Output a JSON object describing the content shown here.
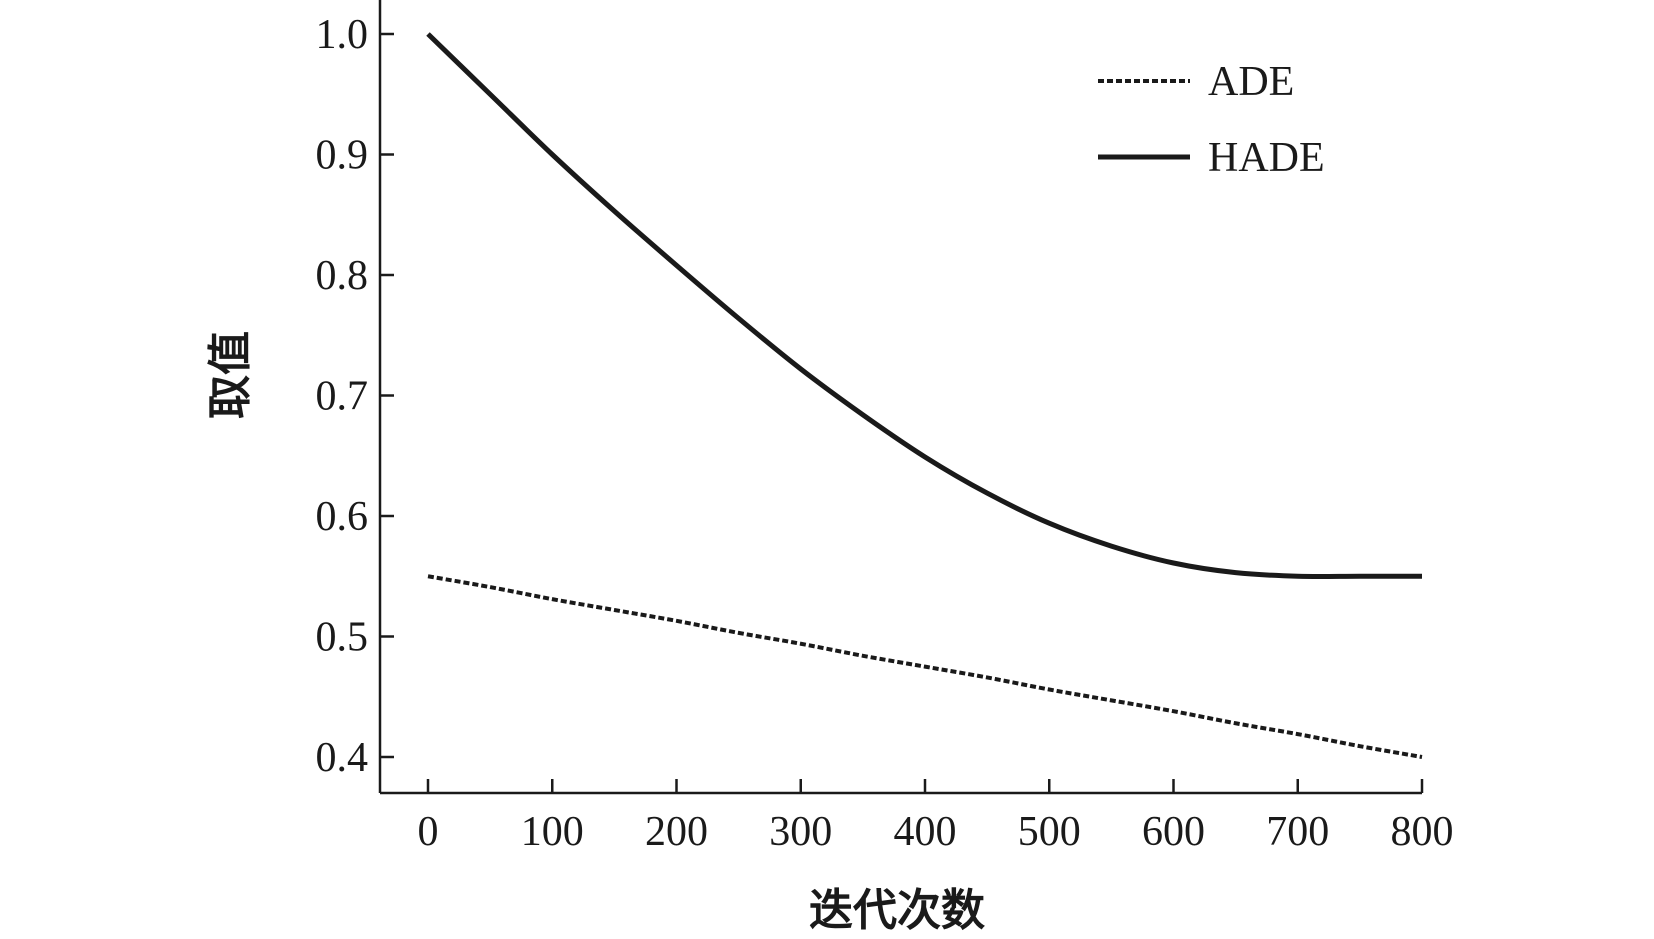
{
  "chart_data": {
    "type": "line",
    "xlabel": "迭代次数",
    "ylabel": "取值",
    "xlim": [
      -40,
      800
    ],
    "ylim": [
      0.37,
      1.0
    ],
    "x_ticks": [
      0,
      100,
      200,
      300,
      400,
      500,
      600,
      700,
      800
    ],
    "x_tick_labels": [
      "0",
      "100",
      "200",
      "300",
      "400",
      "500",
      "600",
      "700",
      "800"
    ],
    "y_ticks": [
      0.4,
      0.5,
      0.6,
      0.7,
      0.8,
      0.9,
      1.0
    ],
    "y_tick_labels": [
      "0.4",
      "0.5",
      "0.6",
      "0.7",
      "0.8",
      "0.9",
      "1.0"
    ],
    "grid": false,
    "legend_position": "top-right",
    "x": [
      0,
      50,
      100,
      150,
      200,
      250,
      300,
      350,
      400,
      450,
      500,
      550,
      600,
      650,
      700,
      750,
      800
    ],
    "series": [
      {
        "name": "ADE",
        "style": "dashed",
        "color": "#1a1a1a",
        "values": [
          0.55,
          0.541,
          0.531,
          0.522,
          0.513,
          0.503,
          0.494,
          0.484,
          0.475,
          0.466,
          0.456,
          0.447,
          0.438,
          0.428,
          0.419,
          0.409,
          0.4
        ]
      },
      {
        "name": "HADE",
        "style": "solid",
        "color": "#1a1a1a",
        "values": [
          1.0,
          0.95,
          0.9,
          0.853,
          0.808,
          0.764,
          0.722,
          0.684,
          0.649,
          0.619,
          0.594,
          0.575,
          0.561,
          0.553,
          0.55,
          0.55,
          0.55
        ]
      }
    ]
  }
}
